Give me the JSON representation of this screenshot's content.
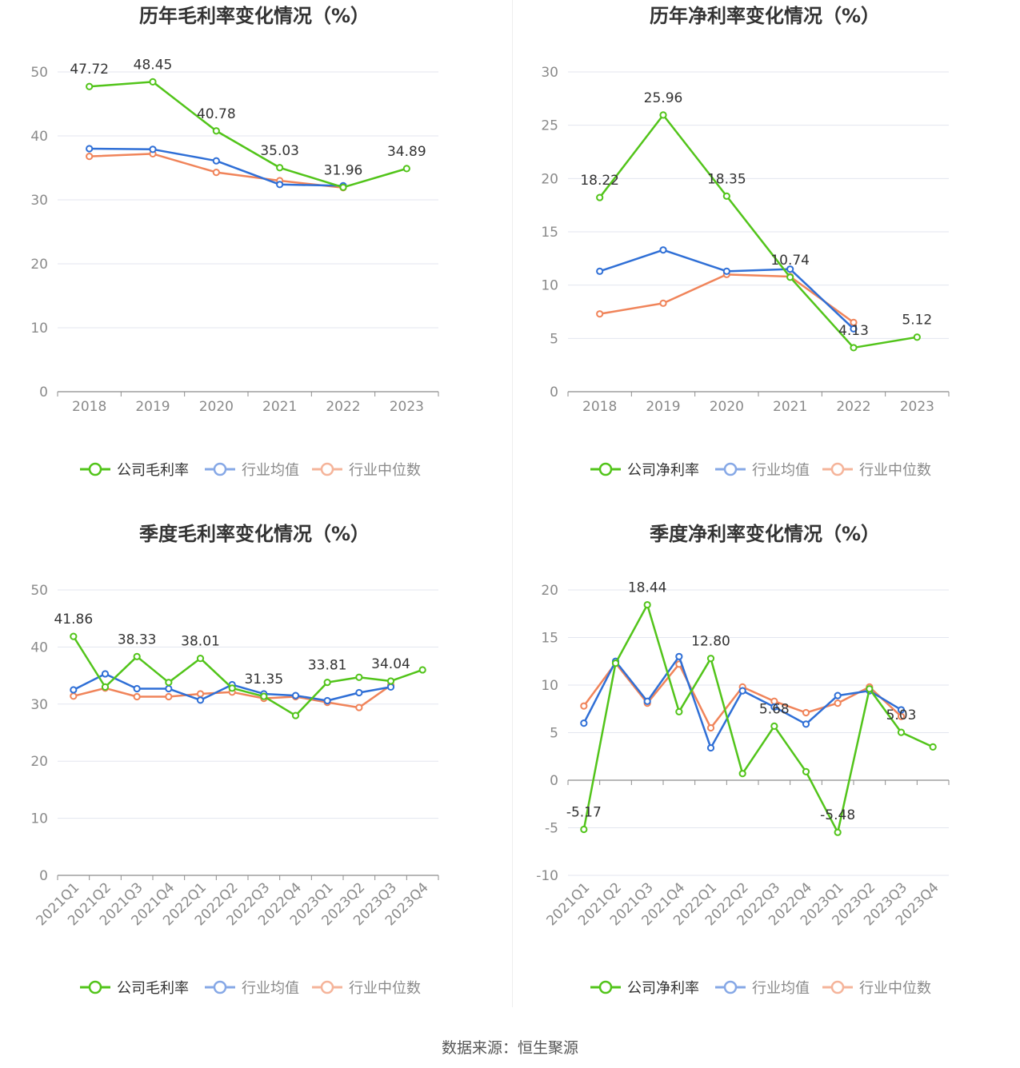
{
  "footer": {
    "source": "数据来源：恒生聚源"
  },
  "colors": {
    "company": "#52c41a",
    "avg": "#2f6fd6",
    "median": "#f0845a",
    "avg_legend": "#86a8e6",
    "median_legend": "#f5b49a",
    "grid": "#e3e6ef",
    "axis": "#8c8c8c"
  },
  "chart_data": [
    {
      "type": "line",
      "title": "历年毛利率变化情况（%）",
      "categories": [
        "2018",
        "2019",
        "2020",
        "2021",
        "2022",
        "2023"
      ],
      "ylim": [
        0,
        50
      ],
      "yticks": [
        0,
        10,
        20,
        30,
        40,
        50
      ],
      "series": [
        {
          "name": "公司毛利率",
          "key": "company",
          "values": [
            47.72,
            48.45,
            40.78,
            35.03,
            31.96,
            34.89
          ]
        },
        {
          "name": "行业均值",
          "key": "avg",
          "values": [
            38.0,
            37.9,
            36.1,
            32.4,
            32.2,
            null
          ]
        },
        {
          "name": "行业中位数",
          "key": "median",
          "values": [
            36.8,
            37.2,
            34.3,
            33.0,
            31.9,
            null
          ]
        }
      ],
      "labels": [
        "47.72",
        "48.45",
        "40.78",
        "35.03",
        "31.96",
        "34.89"
      ],
      "legend": [
        "公司毛利率",
        "行业均值",
        "行业中位数"
      ]
    },
    {
      "type": "line",
      "title": "历年净利率变化情况（%）",
      "categories": [
        "2018",
        "2019",
        "2020",
        "2021",
        "2022",
        "2023"
      ],
      "ylim": [
        0,
        30
      ],
      "yticks": [
        0,
        5,
        10,
        15,
        20,
        25,
        30
      ],
      "series": [
        {
          "name": "公司净利率",
          "key": "company",
          "values": [
            18.22,
            25.96,
            18.35,
            10.74,
            4.13,
            5.12
          ]
        },
        {
          "name": "行业均值",
          "key": "avg",
          "values": [
            11.3,
            13.3,
            11.3,
            11.5,
            5.9,
            null
          ]
        },
        {
          "name": "行业中位数",
          "key": "median",
          "values": [
            7.3,
            8.3,
            11.0,
            10.8,
            6.5,
            null
          ]
        }
      ],
      "labels": [
        "18.22",
        "25.96",
        "18.35",
        "10.74",
        "4.13",
        "5.12"
      ],
      "legend": [
        "公司净利率",
        "行业均值",
        "行业中位数"
      ]
    },
    {
      "type": "line",
      "title": "季度毛利率变化情况（%）",
      "categories": [
        "2021Q1",
        "2021Q2",
        "2021Q3",
        "2021Q4",
        "2022Q1",
        "2022Q2",
        "2022Q3",
        "2022Q4",
        "2023Q1",
        "2023Q2",
        "2023Q3",
        "2023Q4"
      ],
      "ylim": [
        0,
        50
      ],
      "yticks": [
        0,
        10,
        20,
        30,
        40,
        50
      ],
      "series": [
        {
          "name": "公司毛利率",
          "key": "company",
          "values": [
            41.86,
            33.0,
            38.33,
            33.8,
            38.01,
            32.8,
            31.35,
            28.0,
            33.81,
            34.7,
            34.04,
            36.0
          ]
        },
        {
          "name": "行业均值",
          "key": "avg",
          "values": [
            32.5,
            35.3,
            32.7,
            32.7,
            30.7,
            33.4,
            31.8,
            31.5,
            30.6,
            32.0,
            33.0,
            null
          ]
        },
        {
          "name": "行业中位数",
          "key": "median",
          "values": [
            31.4,
            32.8,
            31.3,
            31.3,
            31.8,
            32.1,
            31.0,
            31.3,
            30.3,
            29.4,
            33.3,
            null
          ]
        }
      ],
      "labels": [
        "41.86",
        "",
        "38.33",
        "",
        "38.01",
        "",
        "31.35",
        "",
        "33.81",
        "",
        "34.04",
        ""
      ],
      "legend": [
        "公司毛利率",
        "行业均值",
        "行业中位数"
      ]
    },
    {
      "type": "line",
      "title": "季度净利率变化情况（%）",
      "categories": [
        "2021Q1",
        "2021Q2",
        "2021Q3",
        "2021Q4",
        "2022Q1",
        "2022Q2",
        "2022Q3",
        "2022Q4",
        "2023Q1",
        "2023Q2",
        "2023Q3",
        "2023Q4"
      ],
      "ylim": [
        -10,
        20
      ],
      "yticks": [
        -10,
        -5,
        0,
        5,
        10,
        15,
        20
      ],
      "series": [
        {
          "name": "公司净利率",
          "key": "company",
          "values": [
            -5.17,
            12.3,
            18.44,
            7.2,
            12.8,
            0.7,
            5.68,
            0.9,
            -5.48,
            9.6,
            5.03,
            3.5
          ]
        },
        {
          "name": "行业均值",
          "key": "avg",
          "values": [
            6.0,
            12.5,
            8.3,
            13.0,
            3.4,
            9.4,
            7.7,
            5.9,
            8.9,
            9.4,
            7.4,
            null
          ]
        },
        {
          "name": "行业中位数",
          "key": "median",
          "values": [
            7.8,
            12.3,
            8.1,
            12.2,
            5.5,
            9.8,
            8.3,
            7.1,
            8.1,
            9.8,
            6.7,
            null
          ]
        }
      ],
      "labels": [
        "-5.17",
        "",
        "18.44",
        "",
        "12.80",
        "",
        "5.68",
        "",
        "-5.48",
        "",
        "5.03",
        ""
      ],
      "legend": [
        "公司净利率",
        "行业均值",
        "行业中位数"
      ]
    }
  ]
}
